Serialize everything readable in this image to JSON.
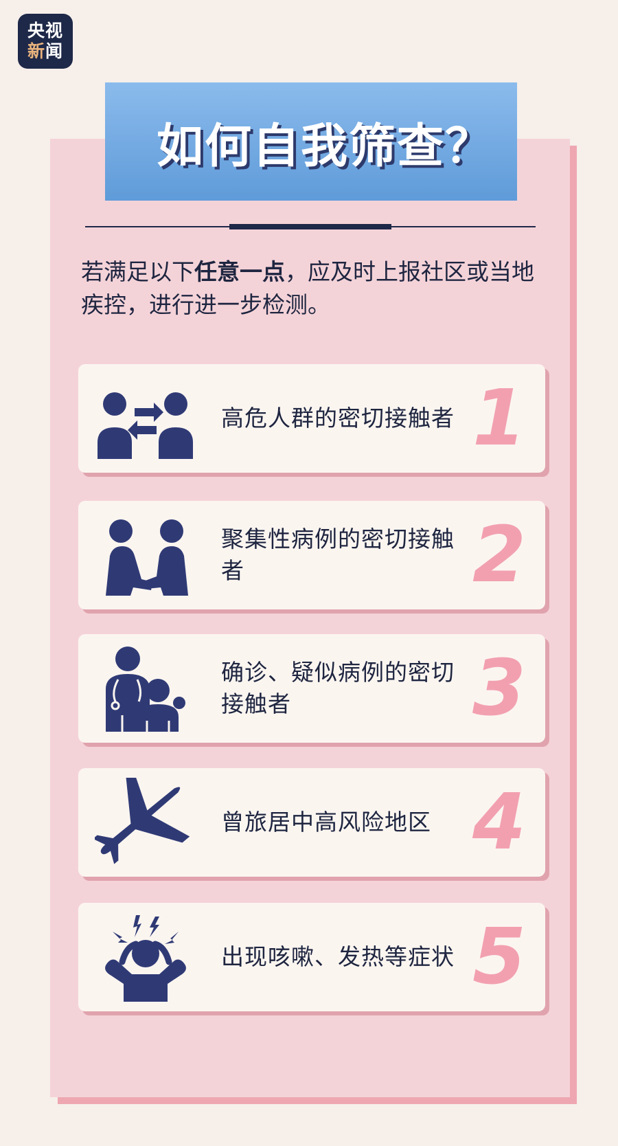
{
  "brand": {
    "line1": "央视",
    "line2a": "新",
    "line2b": "闻"
  },
  "title": "如何自我筛查？",
  "intro": {
    "before": "若满足以下",
    "bold": "任意一点",
    "after": "，应及时上报社区或当地疾控，进行进一步检测。"
  },
  "items": [
    {
      "text": "高危人群的密切接触者",
      "number": "1",
      "icon": "people-exchange-icon"
    },
    {
      "text": "聚集性病例的密切接触者",
      "number": "2",
      "icon": "people-handshake-icon"
    },
    {
      "text": "确诊、疑似病例的密切接触者",
      "number": "3",
      "icon": "doctor-patient-icon"
    },
    {
      "text": "曾旅居中高风险地区",
      "number": "4",
      "icon": "airplane-icon"
    },
    {
      "text": "出现咳嗽、发热等症状",
      "number": "5",
      "icon": "headache-person-icon"
    }
  ],
  "colors": {
    "navy": "#2f3a75",
    "pink": "#f2a0b0",
    "panel": "#f4d3d8",
    "title_blue": "#6fa6df"
  }
}
